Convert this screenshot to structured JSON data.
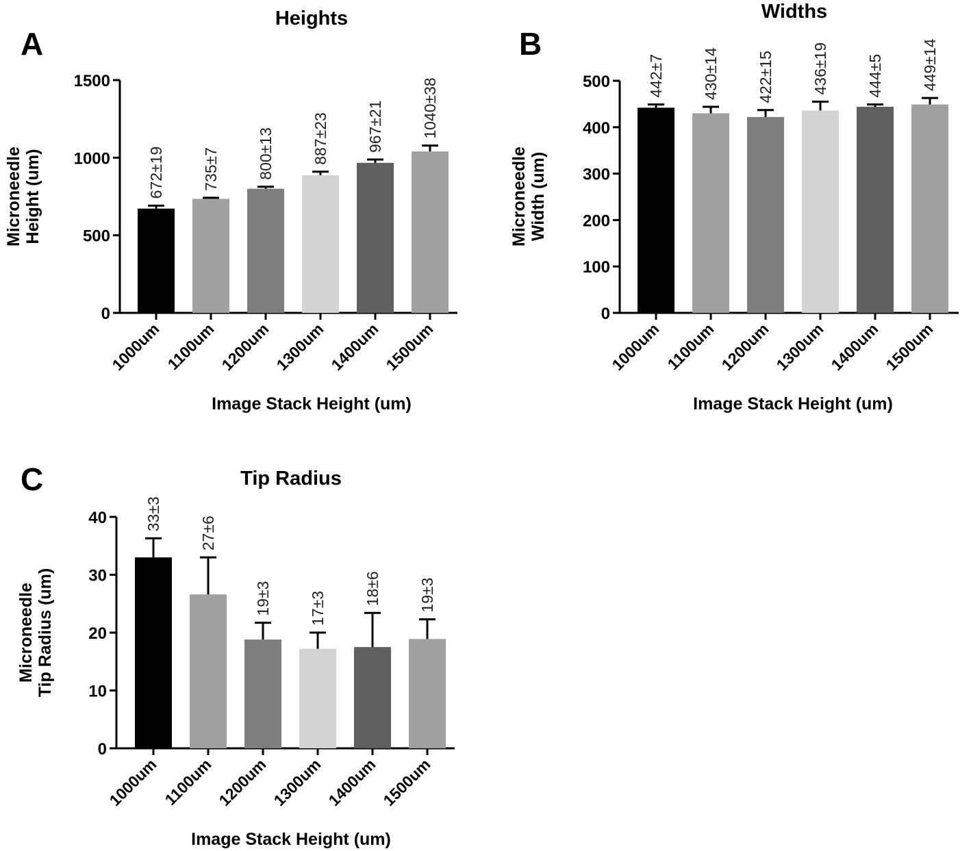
{
  "chart_data": [
    {
      "type": "bar",
      "panel": "A",
      "title": "Heights",
      "xlabel": "Image Stack Height (um)",
      "ylabel": [
        "Microneedle",
        "Height (um)"
      ],
      "categories": [
        "1000um",
        "1100um",
        "1200um",
        "1300um",
        "1400um",
        "1500um"
      ],
      "values": [
        672,
        735,
        800,
        887,
        967,
        1040
      ],
      "errors": [
        19,
        7,
        13,
        23,
        21,
        38
      ],
      "data_labels": [
        "672±19",
        "735±7",
        "800±13",
        "887±23",
        "967±21",
        "1040±38"
      ],
      "bar_colors": [
        "#000000",
        "#a0a0a0",
        "#7e7e7e",
        "#d3d3d3",
        "#606060",
        "#a0a0a0"
      ],
      "ylim": [
        0,
        1500
      ],
      "yticks": [
        0,
        500,
        1000,
        1500
      ],
      "grid": false
    },
    {
      "type": "bar",
      "panel": "B",
      "title": "Widths",
      "xlabel": "Image Stack Height (um)",
      "ylabel": [
        "Microneedle",
        "Width (um)"
      ],
      "categories": [
        "1000um",
        "1100um",
        "1200um",
        "1300um",
        "1400um",
        "1500um"
      ],
      "values": [
        442,
        430,
        422,
        436,
        444,
        449
      ],
      "errors": [
        7,
        14,
        15,
        19,
        5,
        14
      ],
      "data_labels": [
        "442±7",
        "430±14",
        "422±15",
        "436±19",
        "444±5",
        "449±14"
      ],
      "bar_colors": [
        "#000000",
        "#a0a0a0",
        "#7e7e7e",
        "#d3d3d3",
        "#606060",
        "#a0a0a0"
      ],
      "ylim": [
        0,
        500
      ],
      "yticks": [
        0,
        100,
        200,
        300,
        400,
        500
      ],
      "grid": false
    },
    {
      "type": "bar",
      "panel": "C",
      "title": "Tip Radius",
      "xlabel": "Image Stack Height (um)",
      "ylabel": [
        "Microneedle",
        "Tip Radius (um)"
      ],
      "categories": [
        "1000um",
        "1100um",
        "1200um",
        "1300um",
        "1400um",
        "1500um"
      ],
      "values": [
        33,
        26.6,
        18.8,
        17.2,
        17.5,
        18.9
      ],
      "errors": [
        3.3,
        6.4,
        2.9,
        2.8,
        5.9,
        3.4
      ],
      "data_labels": [
        "33±3",
        "27±6",
        "19±3",
        "17±3",
        "18±6",
        "19±3"
      ],
      "bar_colors": [
        "#000000",
        "#a0a0a0",
        "#7e7e7e",
        "#d3d3d3",
        "#606060",
        "#a0a0a0"
      ],
      "ylim": [
        0,
        40
      ],
      "yticks": [
        0,
        10,
        20,
        30,
        40
      ],
      "grid": false
    }
  ]
}
